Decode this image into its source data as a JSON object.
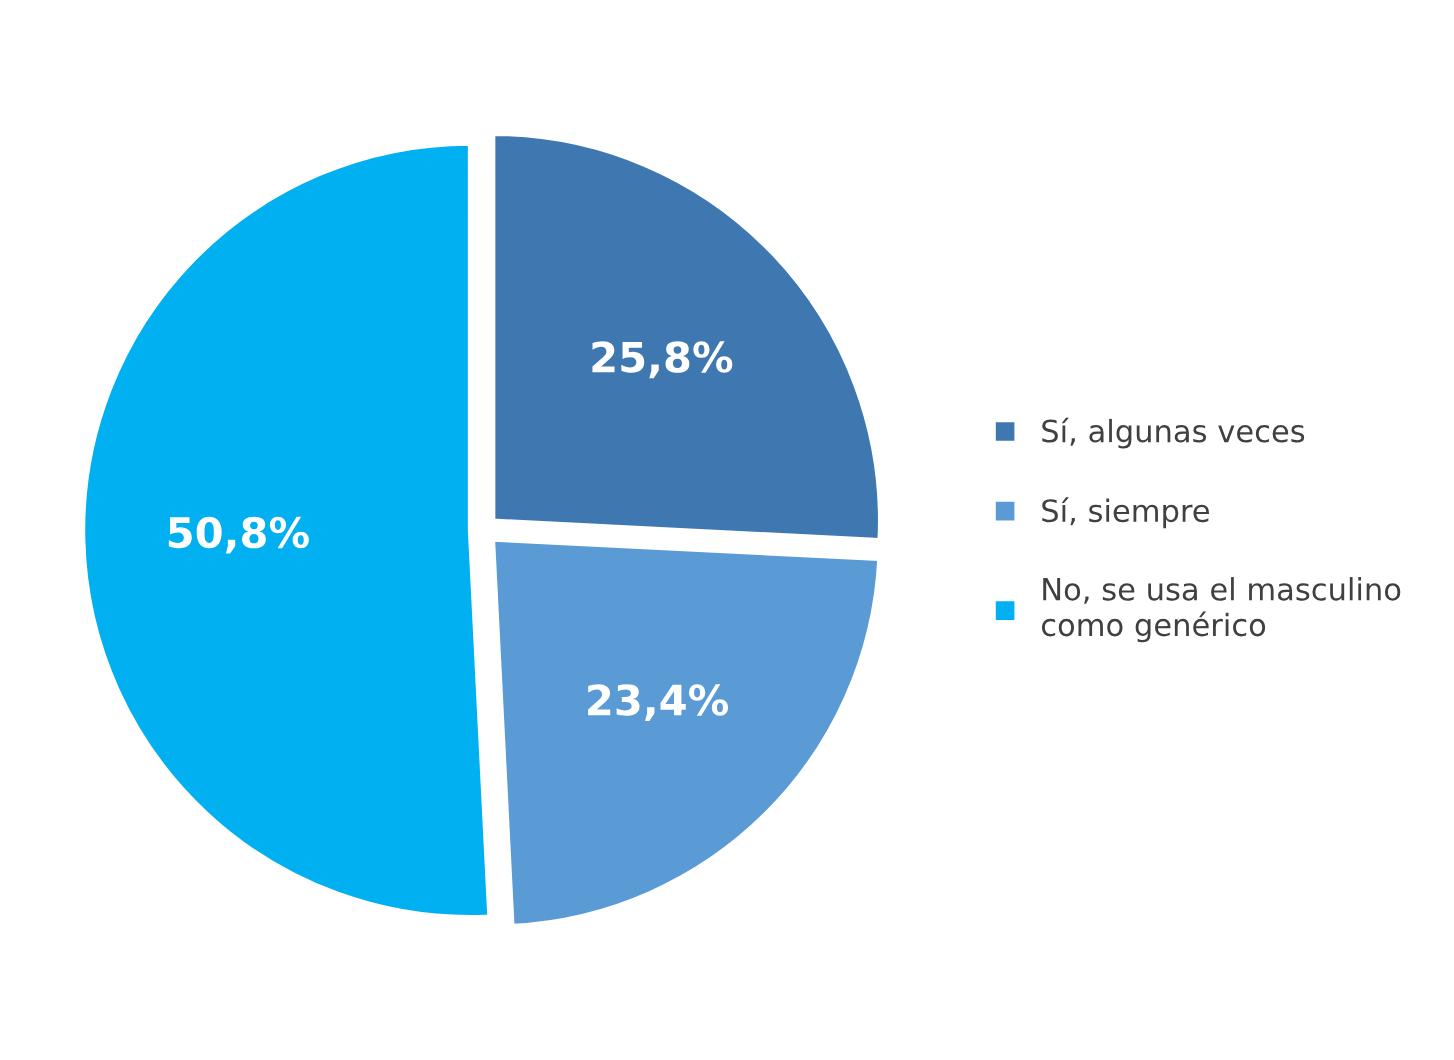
{
  "chart_data": {
    "type": "pie",
    "categories": [
      "Sí, algunas veces",
      "Sí, siempre",
      "No, se usa el masculino como genérico"
    ],
    "values": [
      25.8,
      23.4,
      50.8
    ],
    "value_labels": [
      "25,8%",
      "23,4%",
      "50,8%"
    ],
    "colors": [
      "#3f77b1",
      "#5b9bd5",
      "#00b0f0"
    ],
    "legend": "right"
  }
}
